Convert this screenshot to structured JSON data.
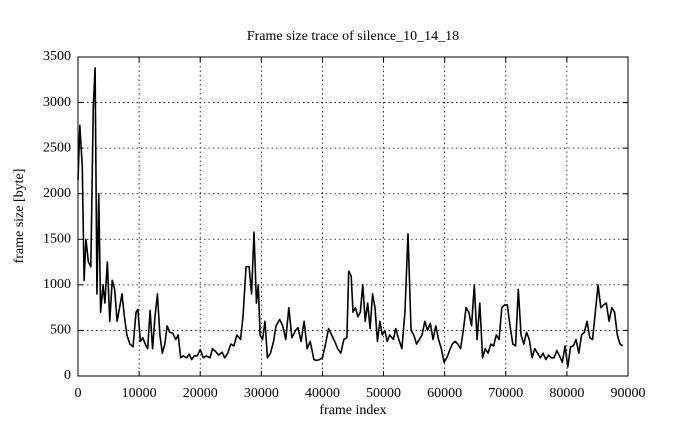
{
  "chart_data": {
    "type": "line",
    "title": "Frame size trace of silence_10_14_18",
    "x_label": "frame index",
    "y_label": "frame size [byte]",
    "color": "#000000",
    "grid": true,
    "xlim": [
      0,
      90000
    ],
    "xticks": [
      0,
      10000,
      20000,
      30000,
      40000,
      50000,
      60000,
      70000,
      80000,
      90000
    ],
    "ylim": [
      0,
      3500
    ],
    "yticks": [
      0,
      500,
      1000,
      1500,
      2000,
      2500,
      3000,
      3500
    ],
    "x": [
      0,
      300,
      700,
      1000,
      1300,
      1700,
      2100,
      2500,
      2800,
      3100,
      3400,
      3700,
      4100,
      4400,
      4800,
      5200,
      5600,
      6000,
      6400,
      6800,
      7200,
      7600,
      8000,
      8500,
      9000,
      9500,
      9800,
      10200,
      10600,
      11000,
      11400,
      11800,
      12200,
      12600,
      13000,
      13400,
      13800,
      14200,
      14600,
      15000,
      15500,
      16000,
      16400,
      16800,
      17200,
      17800,
      18200,
      18600,
      19000,
      19500,
      20000,
      20500,
      21000,
      21600,
      22000,
      22500,
      23000,
      23600,
      24000,
      24500,
      25000,
      25500,
      26000,
      26600,
      27000,
      27500,
      28000,
      28400,
      28800,
      29200,
      29500,
      29800,
      30200,
      30600,
      31000,
      31500,
      32000,
      32400,
      33000,
      33500,
      34000,
      34500,
      35000,
      35600,
      36000,
      36500,
      37000,
      37500,
      38000,
      38600,
      39000,
      39500,
      40000,
      40500,
      41000,
      41500,
      42000,
      42500,
      43000,
      43500,
      44000,
      44300,
      44700,
      45000,
      45400,
      45800,
      46200,
      46600,
      47000,
      47400,
      47800,
      48200,
      48600,
      49000,
      49400,
      49800,
      50200,
      50600,
      51000,
      51600,
      52000,
      52500,
      53000,
      53500,
      54000,
      54500,
      54950,
      55400,
      55850,
      56300,
      56750,
      57200,
      57650,
      58100,
      58550,
      59000,
      59450,
      59900,
      60350,
      60800,
      61250,
      61700,
      62150,
      62600,
      63050,
      63500,
      63950,
      64400,
      64850,
      65300,
      65750,
      66200,
      66650,
      67100,
      67550,
      68000,
      68450,
      68900,
      69350,
      69800,
      70250,
      70700,
      71150,
      71600,
      72050,
      72500,
      72950,
      73400,
      73850,
      74300,
      74750,
      75200,
      75650,
      76100,
      76550,
      77000,
      77450,
      77900,
      78350,
      78800,
      79250,
      79700,
      80150,
      80600,
      81050,
      81500,
      81950,
      82400,
      82850,
      83300,
      83750,
      84200,
      84650,
      85100,
      85550,
      86000,
      86450,
      86900,
      87350,
      87800,
      88250,
      88700,
      89150
    ],
    "values": [
      2150,
      2750,
      2300,
      1050,
      1500,
      1250,
      1200,
      2950,
      3380,
      900,
      2000,
      700,
      1000,
      800,
      1250,
      600,
      1050,
      950,
      600,
      750,
      900,
      650,
      450,
      350,
      320,
      700,
      730,
      380,
      420,
      350,
      300,
      720,
      300,
      650,
      900,
      450,
      250,
      350,
      550,
      480,
      470,
      400,
      450,
      200,
      220,
      200,
      240,
      180,
      220,
      220,
      290,
      200,
      220,
      200,
      300,
      270,
      230,
      260,
      200,
      250,
      350,
      330,
      450,
      400,
      650,
      1200,
      1200,
      900,
      1580,
      800,
      1000,
      450,
      400,
      600,
      200,
      250,
      380,
      550,
      620,
      550,
      400,
      750,
      420,
      500,
      530,
      380,
      600,
      300,
      380,
      180,
      170,
      180,
      200,
      350,
      520,
      450,
      380,
      300,
      250,
      400,
      420,
      1150,
      1100,
      700,
      750,
      650,
      700,
      1000,
      600,
      800,
      520,
      900,
      750,
      380,
      600,
      450,
      500,
      380,
      450,
      400,
      520,
      400,
      300,
      700,
      1560,
      500,
      450,
      350,
      400,
      450,
      600,
      500,
      580,
      400,
      550,
      400,
      300,
      150,
      200,
      280,
      350,
      380,
      350,
      300,
      500,
      750,
      700,
      550,
      1000,
      400,
      800,
      200,
      300,
      250,
      350,
      330,
      450,
      400,
      750,
      780,
      780,
      550,
      350,
      330,
      950,
      450,
      350,
      480,
      400,
      200,
      300,
      250,
      200,
      250,
      180,
      230,
      200,
      200,
      280,
      220,
      150,
      330,
      100,
      320,
      330,
      400,
      250,
      450,
      480,
      600,
      420,
      400,
      700,
      1000,
      750,
      780,
      800,
      600,
      750,
      700,
      450,
      350,
      330
    ]
  }
}
